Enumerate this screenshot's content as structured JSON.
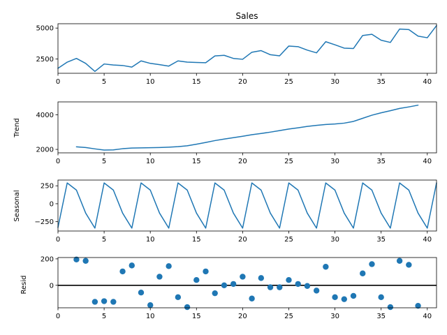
{
  "colors": {
    "series": "#1f77b4",
    "axis": "#000000",
    "background": "#ffffff",
    "zero_line": "#000000"
  },
  "chart_data": [
    {
      "type": "line",
      "title": "Sales",
      "xlabel": "",
      "ylabel": "",
      "xlim": [
        0,
        41
      ],
      "ylim": [
        1350,
        5350
      ],
      "xticks": [
        0,
        5,
        10,
        15,
        20,
        25,
        30,
        35,
        40
      ],
      "yticks": [
        2500,
        5000
      ],
      "grid": false,
      "series": [
        {
          "x": [
            0,
            1,
            2,
            3,
            4,
            5,
            6,
            7,
            8,
            9,
            10,
            11,
            12,
            13,
            14,
            15,
            16,
            17,
            18,
            19,
            20,
            21,
            22,
            23,
            24,
            25,
            26,
            27,
            28,
            29,
            30,
            31,
            32,
            33,
            34,
            35,
            36,
            37,
            38,
            39,
            40,
            41
          ],
          "values": [
            1750,
            2250,
            2550,
            2150,
            1500,
            2100,
            2020,
            1980,
            1850,
            2350,
            2150,
            2050,
            1930,
            2350,
            2250,
            2220,
            2200,
            2750,
            2800,
            2550,
            2480,
            3050,
            3180,
            2850,
            2760,
            3550,
            3500,
            3220,
            3000,
            3900,
            3650,
            3380,
            3350,
            4400,
            4500,
            4020,
            3840,
            4920,
            4880,
            4350,
            4220,
            5200
          ]
        }
      ]
    },
    {
      "type": "line",
      "title": "",
      "xlabel": "",
      "ylabel": "Trend",
      "xlim": [
        0,
        41
      ],
      "ylim": [
        1800,
        4750
      ],
      "xticks": [
        0,
        5,
        10,
        15,
        20,
        25,
        30,
        35,
        40
      ],
      "yticks": [
        2000,
        4000
      ],
      "grid": false,
      "series": [
        {
          "x": [
            2,
            3,
            4,
            5,
            6,
            7,
            8,
            9,
            10,
            11,
            12,
            13,
            14,
            15,
            16,
            17,
            18,
            19,
            20,
            21,
            22,
            23,
            24,
            25,
            26,
            27,
            28,
            29,
            30,
            31,
            32,
            33,
            34,
            35,
            36,
            37,
            38,
            39
          ],
          "values": [
            2150,
            2110,
            2030,
            1960,
            1970,
            2040,
            2080,
            2090,
            2100,
            2110,
            2130,
            2160,
            2210,
            2300,
            2400,
            2510,
            2600,
            2680,
            2760,
            2850,
            2920,
            3000,
            3090,
            3180,
            3250,
            3330,
            3390,
            3440,
            3470,
            3520,
            3620,
            3800,
            3980,
            4120,
            4240,
            4370,
            4460,
            4560
          ]
        }
      ]
    },
    {
      "type": "line",
      "title": "",
      "xlabel": "",
      "ylabel": "Seasonal",
      "xlim": [
        0,
        41
      ],
      "ylim": [
        -380,
        330
      ],
      "xticks": [
        0,
        5,
        10,
        15,
        20,
        25,
        30,
        35,
        40
      ],
      "yticks": [
        -250,
        0,
        250
      ],
      "grid": false,
      "series": [
        {
          "x": [
            0,
            1,
            2,
            3,
            4,
            5,
            6,
            7,
            8,
            9,
            10,
            11,
            12,
            13,
            14,
            15,
            16,
            17,
            18,
            19,
            20,
            21,
            22,
            23,
            24,
            25,
            26,
            27,
            28,
            29,
            30,
            31,
            32,
            33,
            34,
            35,
            36,
            37,
            38,
            39,
            40,
            41
          ],
          "values": [
            -330,
            290,
            190,
            -130,
            -340,
            290,
            190,
            -130,
            -340,
            290,
            190,
            -130,
            -340,
            290,
            190,
            -130,
            -340,
            290,
            190,
            -130,
            -340,
            290,
            190,
            -130,
            -340,
            290,
            190,
            -130,
            -340,
            290,
            190,
            -130,
            -340,
            290,
            190,
            -130,
            -340,
            290,
            190,
            -130,
            -340,
            290
          ]
        }
      ]
    },
    {
      "type": "scatter",
      "title": "",
      "xlabel": "",
      "ylabel": "Resid",
      "xlim": [
        0,
        41
      ],
      "ylim": [
        -170,
        210
      ],
      "xticks": [
        0,
        5,
        10,
        15,
        20,
        25,
        30,
        35,
        40
      ],
      "yticks": [
        0,
        200
      ],
      "zero_line": true,
      "grid": false,
      "series": [
        {
          "x": [
            2,
            3,
            4,
            5,
            6,
            7,
            8,
            9,
            10,
            11,
            12,
            13,
            14,
            15,
            16,
            17,
            18,
            19,
            20,
            21,
            22,
            23,
            24,
            25,
            26,
            27,
            28,
            29,
            30,
            31,
            32,
            33,
            34,
            35,
            36,
            37,
            38,
            39
          ],
          "values": [
            195,
            185,
            -125,
            -120,
            -125,
            105,
            150,
            -55,
            -150,
            65,
            145,
            -90,
            -165,
            40,
            105,
            -60,
            0,
            10,
            65,
            -100,
            55,
            -15,
            -15,
            40,
            10,
            -5,
            -40,
            140,
            -90,
            -105,
            -80,
            90,
            160,
            -90,
            -165,
            185,
            155,
            -155
          ]
        }
      ]
    }
  ]
}
